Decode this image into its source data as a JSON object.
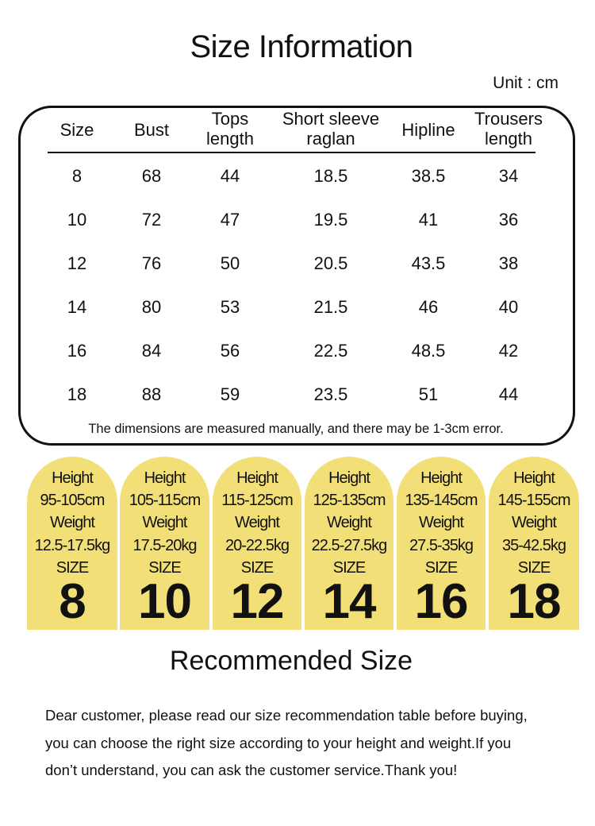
{
  "title": "Size Information",
  "unit": "Unit : cm",
  "table": {
    "headers": [
      [
        "Size"
      ],
      [
        "Bust"
      ],
      [
        "Tops",
        "length"
      ],
      [
        "Short sleeve",
        "raglan"
      ],
      [
        "Hipline"
      ],
      [
        "Trousers",
        "length"
      ]
    ],
    "rows": [
      [
        "8",
        "68",
        "44",
        "18.5",
        "38.5",
        "34"
      ],
      [
        "10",
        "72",
        "47",
        "19.5",
        "41",
        "36"
      ],
      [
        "12",
        "76",
        "50",
        "20.5",
        "43.5",
        "38"
      ],
      [
        "14",
        "80",
        "53",
        "21.5",
        "46",
        "40"
      ],
      [
        "16",
        "84",
        "56",
        "22.5",
        "48.5",
        "42"
      ],
      [
        "18",
        "88",
        "59",
        "23.5",
        "51",
        "44"
      ]
    ],
    "note": "The dimensions are measured manually, and there may be 1-3cm error."
  },
  "cards": [
    {
      "height_label": "Height",
      "height": "95-105cm",
      "weight_label": "Weight",
      "weight": "12.5-17.5kg",
      "size_label": "SIZE",
      "size": "8"
    },
    {
      "height_label": "Height",
      "height": "105-115cm",
      "weight_label": "Weight",
      "weight": "17.5-20kg",
      "size_label": "SIZE",
      "size": "10"
    },
    {
      "height_label": "Height",
      "height": "115-125cm",
      "weight_label": "Weight",
      "weight": "20-22.5kg",
      "size_label": "SIZE",
      "size": "12"
    },
    {
      "height_label": "Height",
      "height": "125-135cm",
      "weight_label": "Weight",
      "weight": "22.5-27.5kg",
      "size_label": "SIZE",
      "size": "14"
    },
    {
      "height_label": "Height",
      "height": "135-145cm",
      "weight_label": "Weight",
      "weight": "27.5-35kg",
      "size_label": "SIZE",
      "size": "16"
    },
    {
      "height_label": "Height",
      "height": "145-155cm",
      "weight_label": "Weight",
      "weight": "35-42.5kg",
      "size_label": "SIZE",
      "size": "18"
    }
  ],
  "recommended_title": "Recommended Size",
  "paragraph": [
    "Dear customer, please read our size recommendation table before buying,",
    "you can choose the right size according to your height and weight.If you",
    "don’t understand, you can ask the customer service.Thank you!"
  ],
  "colors": {
    "card": "#f3df78",
    "text": "#111111"
  }
}
